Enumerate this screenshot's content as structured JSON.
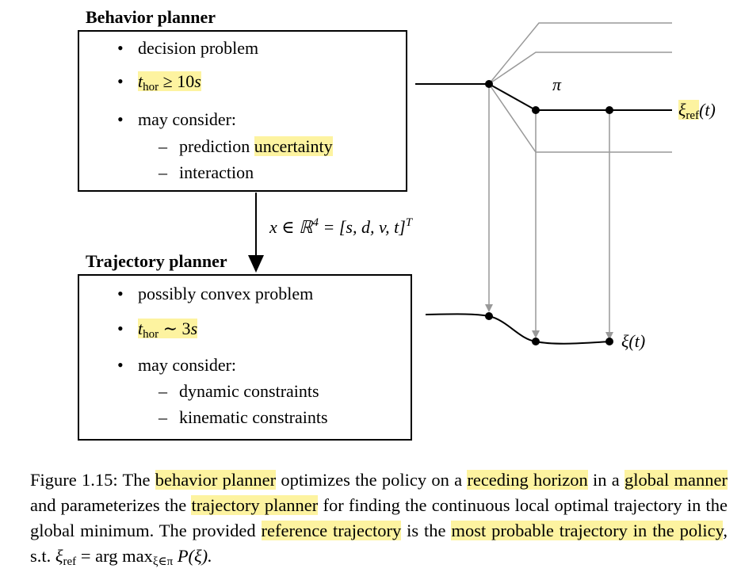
{
  "behavior": {
    "title": "Behavior planner",
    "items": [
      "decision problem",
      "t",
      "hor",
      "≥ 10",
      "s",
      "may consider:"
    ],
    "sub_items": [
      "prediction ",
      "uncertainty",
      "interaction"
    ]
  },
  "trajectory": {
    "title": "Trajectory planner",
    "items": [
      "possibly convex problem",
      "t",
      "hor",
      "∼ 3",
      "s",
      "may consider:"
    ],
    "sub_items": [
      "dynamic constraints",
      "kinematic constraints"
    ]
  },
  "arrow_label": {
    "pre": "x ∈ ℝ",
    "sup1": "4",
    "mid": " = [s, d, v, t]",
    "sup2": "T"
  },
  "labels": {
    "pi": "π",
    "xi": "ξ",
    "ref": "ref",
    "t_paren": "(t)",
    "xi_t": "ξ(t)"
  },
  "caption": {
    "p1": "Figure 1.15: The ",
    "h1": "behavior planner",
    "p2": " optimizes the policy on a ",
    "h2": "receding horizon",
    "p3": " in a ",
    "h3": "global manner",
    "p4": " and parameterizes the ",
    "h4": "trajectory planner",
    "p5": " for finding the continuous local optimal trajectory in the global minimum. The provided ",
    "h5": "reference trajectory",
    "p6": " is the ",
    "h6": "most probable trajectory in the policy",
    "p7": ", s.t. ",
    "m1": "ξ",
    "m1sub": "ref",
    "m2": " = arg max",
    "m2sub": "ξ∈π",
    "m3": " P(ξ)."
  },
  "colors": {
    "highlight": "#fdf3a0",
    "gray_line": "#999999"
  }
}
